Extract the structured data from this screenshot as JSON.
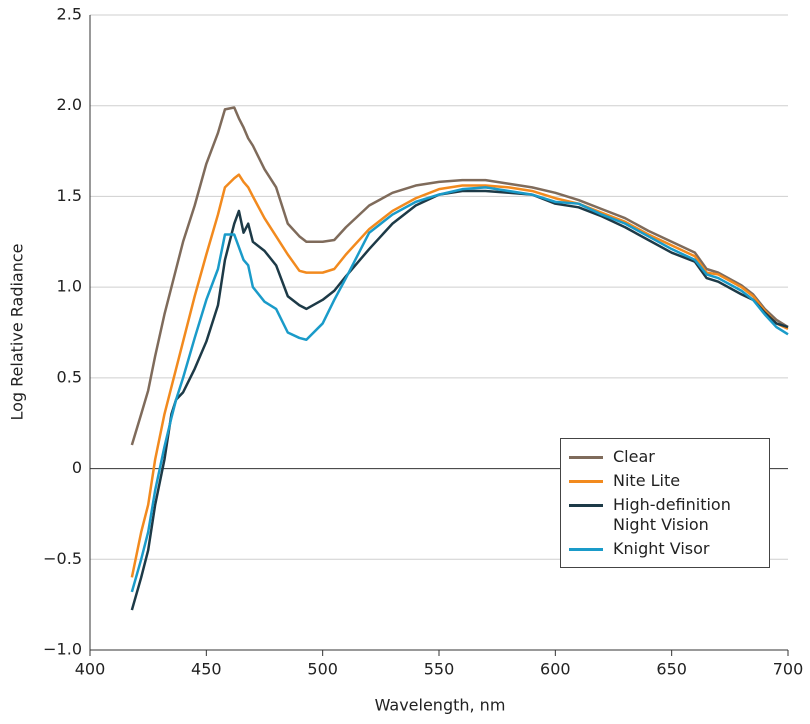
{
  "chart_data": {
    "type": "line",
    "xlabel": "Wavelength, nm",
    "ylabel": "Log Relative Radiance",
    "x": [
      418,
      422,
      425,
      428,
      432,
      435,
      437,
      440,
      445,
      450,
      455,
      458,
      462,
      464,
      466,
      468,
      470,
      475,
      480,
      485,
      490,
      493,
      500,
      505,
      510,
      520,
      530,
      540,
      550,
      560,
      570,
      580,
      590,
      600,
      610,
      620,
      630,
      640,
      650,
      660,
      665,
      670,
      680,
      685,
      690,
      695,
      700
    ],
    "series": [
      {
        "name": "Clear",
        "color": "#7f6b5b",
        "values": [
          0.13,
          0.3,
          0.43,
          0.62,
          0.85,
          1.0,
          1.1,
          1.25,
          1.45,
          1.68,
          1.85,
          1.98,
          1.99,
          1.93,
          1.88,
          1.82,
          1.78,
          1.65,
          1.55,
          1.35,
          1.28,
          1.25,
          1.25,
          1.26,
          1.33,
          1.45,
          1.52,
          1.56,
          1.58,
          1.59,
          1.59,
          1.57,
          1.55,
          1.52,
          1.48,
          1.43,
          1.38,
          1.31,
          1.25,
          1.19,
          1.1,
          1.08,
          1.01,
          0.96,
          0.88,
          0.82,
          0.78
        ]
      },
      {
        "name": "Nite Lite",
        "color": "#f28a1e",
        "values": [
          -0.6,
          -0.35,
          -0.2,
          0.05,
          0.3,
          0.45,
          0.55,
          0.7,
          0.95,
          1.18,
          1.4,
          1.55,
          1.6,
          1.62,
          1.58,
          1.55,
          1.5,
          1.38,
          1.28,
          1.18,
          1.09,
          1.08,
          1.08,
          1.1,
          1.18,
          1.32,
          1.42,
          1.49,
          1.54,
          1.56,
          1.56,
          1.55,
          1.53,
          1.49,
          1.46,
          1.41,
          1.36,
          1.29,
          1.23,
          1.17,
          1.08,
          1.07,
          1.0,
          0.95,
          0.87,
          0.8,
          0.77
        ]
      },
      {
        "name": "High-definition Night Vision",
        "color": "#1d3a47",
        "values": [
          -0.78,
          -0.6,
          -0.45,
          -0.2,
          0.05,
          0.3,
          0.38,
          0.42,
          0.55,
          0.7,
          0.9,
          1.15,
          1.35,
          1.42,
          1.3,
          1.35,
          1.25,
          1.2,
          1.12,
          0.95,
          0.9,
          0.88,
          0.93,
          0.98,
          1.06,
          1.21,
          1.35,
          1.45,
          1.51,
          1.53,
          1.53,
          1.52,
          1.51,
          1.46,
          1.44,
          1.39,
          1.33,
          1.26,
          1.19,
          1.14,
          1.05,
          1.03,
          0.96,
          0.93,
          0.86,
          0.8,
          0.78
        ]
      },
      {
        "name": "Knight Visor",
        "color": "#1a9bc9",
        "values": [
          -0.68,
          -0.5,
          -0.35,
          -0.12,
          0.12,
          0.28,
          0.38,
          0.5,
          0.72,
          0.93,
          1.1,
          1.29,
          1.29,
          1.22,
          1.15,
          1.12,
          1.0,
          0.92,
          0.88,
          0.75,
          0.72,
          0.71,
          0.8,
          0.93,
          1.05,
          1.3,
          1.4,
          1.47,
          1.51,
          1.54,
          1.55,
          1.53,
          1.51,
          1.47,
          1.46,
          1.4,
          1.35,
          1.28,
          1.21,
          1.15,
          1.07,
          1.05,
          0.98,
          0.93,
          0.85,
          0.78,
          0.74
        ]
      }
    ],
    "xlim": [
      400,
      700
    ],
    "xticks": [
      400,
      450,
      500,
      550,
      600,
      650,
      700
    ],
    "ylim": [
      -1.0,
      2.5
    ],
    "yticks": [
      {
        "value": -1.0,
        "label": "−1.0"
      },
      {
        "value": -0.5,
        "label": "−0.5"
      },
      0,
      0.5,
      {
        "value": 1.0,
        "label": "1.0"
      },
      1.5,
      {
        "value": 2.0,
        "label": "2.0"
      },
      2.5
    ],
    "grid": true,
    "legend": "lower right"
  }
}
